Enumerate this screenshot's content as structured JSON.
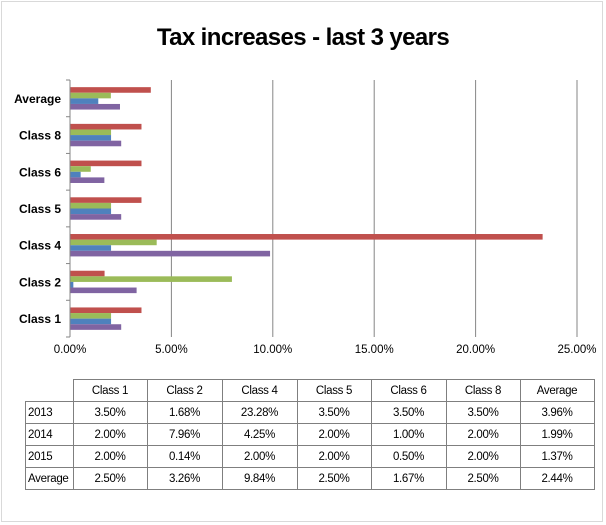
{
  "chart_data": {
    "type": "bar",
    "orientation": "horizontal",
    "title": "Tax increases - last 3 years",
    "categories": [
      "Class 1",
      "Class 2",
      "Class 4",
      "Class 5",
      "Class 6",
      "Class 8",
      "Average"
    ],
    "series": [
      {
        "name": "2013",
        "color": "#c0504d",
        "values": [
          3.5,
          1.68,
          23.28,
          3.5,
          3.5,
          3.5,
          3.96
        ]
      },
      {
        "name": "2014",
        "color": "#9bbb59",
        "values": [
          2.0,
          7.96,
          4.25,
          2.0,
          1.0,
          2.0,
          1.99
        ]
      },
      {
        "name": "2015",
        "color": "#4f81bd",
        "values": [
          2.0,
          0.14,
          2.0,
          2.0,
          0.5,
          2.0,
          1.37
        ]
      },
      {
        "name": "Average",
        "color": "#8064a2",
        "values": [
          2.5,
          3.26,
          9.84,
          2.5,
          1.67,
          2.5,
          2.44
        ]
      }
    ],
    "xlim": [
      0,
      25
    ],
    "x_ticks": [
      "0.00%",
      "5.00%",
      "10.00%",
      "15.00%",
      "20.00%",
      "25.00%"
    ],
    "grid": true,
    "legend": "none"
  },
  "table": {
    "columns": [
      "Class 1",
      "Class 2",
      "Class 4",
      "Class 5",
      "Class 6",
      "Class 8",
      "Average"
    ],
    "rows": [
      {
        "label": "2013",
        "cells": [
          "3.50%",
          "1.68%",
          "23.28%",
          "3.50%",
          "3.50%",
          "3.50%",
          "3.96%"
        ]
      },
      {
        "label": "2014",
        "cells": [
          "2.00%",
          "7.96%",
          "4.25%",
          "2.00%",
          "1.00%",
          "2.00%",
          "1.99%"
        ]
      },
      {
        "label": "2015",
        "cells": [
          "2.00%",
          "0.14%",
          "2.00%",
          "2.00%",
          "0.50%",
          "2.00%",
          "1.37%"
        ]
      },
      {
        "label": "Average",
        "cells": [
          "2.50%",
          "3.26%",
          "9.84%",
          "2.50%",
          "1.67%",
          "2.50%",
          "2.44%"
        ]
      }
    ]
  }
}
